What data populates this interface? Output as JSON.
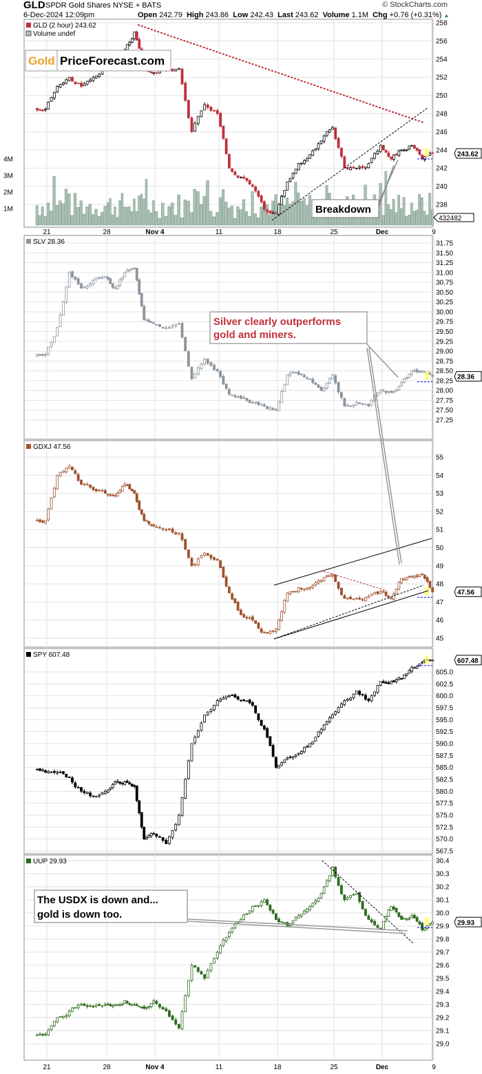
{
  "header": {
    "symbol": "GLD",
    "name": "SPDR Gold Shares NYSE + BATS",
    "copyright": "© StockCharts.com",
    "datetime": "6-Dec-2024 12:09pm",
    "quote": [
      {
        "k": "Open",
        "v": "242.79"
      },
      {
        "k": "High",
        "v": "243.86"
      },
      {
        "k": "Low",
        "v": "242.43"
      },
      {
        "k": "Last",
        "v": "243.62"
      },
      {
        "k": "Volume",
        "v": "1.1M"
      },
      {
        "k": "Chg",
        "v": "+0.76 (+0.31%)"
      }
    ]
  },
  "logo": {
    "part1": "Gold",
    "part2": "PriceForecast.com",
    "color1": "#f0a030"
  },
  "colors": {
    "gld_down": "#c0303a",
    "slv": "#8a959e",
    "gdxj": "#a0522d",
    "spy": "#000000",
    "uup": "#2e6b1e",
    "volume": "#a9c0b3",
    "marker": "#0000ff",
    "highlight": "#ffff66"
  },
  "chart_data": {
    "type": "candlestick",
    "interval": "2 hour",
    "dates": [
      "Oct 18",
      "Oct 21",
      "Oct 22",
      "Oct 23",
      "Oct 24",
      "Oct 25",
      "Oct 28",
      "Oct 29",
      "Oct 30",
      "Oct 31",
      "Nov 1",
      "Nov 4",
      "Nov 5",
      "Nov 6",
      "Nov 7",
      "Nov 8",
      "Nov 11",
      "Nov 12",
      "Nov 13",
      "Nov 14",
      "Nov 15",
      "Nov 18",
      "Nov 19",
      "Nov 20",
      "Nov 21",
      "Nov 22",
      "Nov 25",
      "Nov 26",
      "Nov 27",
      "Nov 29",
      "Dec 2",
      "Dec 3",
      "Dec 4",
      "Dec 5",
      "Dec 6"
    ],
    "x_tick_labels": [
      "21",
      "28",
      "Nov 4",
      "11",
      "18",
      "25",
      "Dec",
      "9"
    ],
    "panels": [
      {
        "id": "gld",
        "legend": "GLD (2 hour) 243.62",
        "sub_legend": "Volume undef",
        "last": "243.62",
        "volume_last": "432482",
        "ylim": [
          236,
          258
        ],
        "ticks": [
          "238",
          "240",
          "242",
          "244",
          "246",
          "248",
          "250",
          "252",
          "254",
          "256",
          "258"
        ],
        "volume_ticks": [
          "1M",
          "2M",
          "3M",
          "4M"
        ],
        "closes": [
          248.5,
          251,
          252,
          251,
          252,
          253,
          253,
          255,
          257,
          253,
          252.5,
          253,
          253,
          246,
          249,
          248,
          242,
          241,
          240,
          237.5,
          237,
          240.5,
          242.5,
          243.5,
          245,
          246.5,
          242,
          242,
          242.5,
          244.5,
          243,
          244,
          244.5,
          243,
          243.62
        ],
        "annotation": "Breakdown"
      },
      {
        "id": "slv",
        "legend": "SLV 28.36",
        "last": "28.36",
        "ylim": [
          27.1,
          31.9
        ],
        "ticks": [
          "27.25",
          "27.50",
          "27.75",
          "28.00",
          "28.25",
          "28.50",
          "28.75",
          "29.00",
          "29.25",
          "29.50",
          "29.75",
          "30.00",
          "30.25",
          "30.50",
          "30.75",
          "31.00",
          "31.25",
          "31.50",
          "31.75"
        ],
        "closes": [
          28.9,
          29.6,
          31,
          30.6,
          30.8,
          30.9,
          30.6,
          31,
          31.1,
          29.8,
          29.7,
          29.6,
          29.7,
          28.3,
          28.8,
          28.5,
          27.9,
          27.8,
          27.7,
          27.6,
          27.5,
          28.4,
          28.4,
          28.3,
          28,
          28.4,
          27.6,
          27.7,
          27.6,
          28,
          27.95,
          28.2,
          28.5,
          28.5,
          28.36
        ],
        "annotation": "Silver clearly outperforms gold and miners."
      },
      {
        "id": "gdxj",
        "legend": "GDXJ 47.56",
        "last": "47.56",
        "ylim": [
          44.5,
          55.5
        ],
        "ticks": [
          "45",
          "46",
          "47",
          "48",
          "49",
          "50",
          "51",
          "52",
          "53",
          "54",
          "55"
        ],
        "closes": [
          51.5,
          54,
          54.5,
          53.5,
          53.2,
          53,
          52.9,
          53.5,
          53,
          51.5,
          51.2,
          51,
          50.8,
          49,
          49.7,
          49.3,
          47.5,
          46.3,
          46,
          45.3,
          45.5,
          47.5,
          47.8,
          47.8,
          48.2,
          48.5,
          47.2,
          47.2,
          47.3,
          47.6,
          47.2,
          48.3,
          48.4,
          48.5,
          47.56
        ]
      },
      {
        "id": "spy",
        "legend": "SPY 607.48",
        "last": "607.48",
        "ylim": [
          567,
          609
        ],
        "ticks": [
          "567.5",
          "570.0",
          "572.5",
          "575.0",
          "577.5",
          "580.0",
          "582.5",
          "585.0",
          "587.5",
          "590.0",
          "592.5",
          "595.0",
          "597.5",
          "600.0",
          "602.5",
          "605.0"
        ],
        "closes": [
          584,
          584,
          583,
          580,
          579,
          580,
          582,
          582,
          581,
          570,
          571,
          569,
          575,
          590,
          596,
          599,
          600,
          599,
          598,
          593,
          585,
          587,
          588,
          590,
          593,
          596,
          599,
          601,
          599,
          603,
          603,
          603.5,
          606,
          607,
          607.48
        ]
      },
      {
        "id": "uup",
        "legend": "UUP 29.93",
        "last": "29.93",
        "ylim": [
          28.98,
          30.42
        ],
        "ticks": [
          "29.0",
          "29.1",
          "29.2",
          "29.3",
          "29.4",
          "29.5",
          "29.6",
          "29.7",
          "29.8",
          "29.9",
          "30.0",
          "30.1",
          "30.2",
          "30.3",
          "30.4"
        ],
        "closes": [
          29.07,
          29.2,
          29.25,
          29.3,
          29.28,
          29.3,
          29.3,
          29.33,
          29.3,
          29.27,
          29.33,
          29.25,
          29.12,
          29.6,
          29.5,
          29.7,
          29.85,
          29.95,
          30.05,
          30.1,
          29.95,
          29.9,
          29.98,
          30.05,
          30.15,
          30.35,
          30.1,
          30.15,
          29.95,
          29.88,
          30.05,
          29.95,
          29.98,
          29.87,
          29.93
        ],
        "annotation": "The USDX is down and... gold is down too."
      }
    ]
  }
}
